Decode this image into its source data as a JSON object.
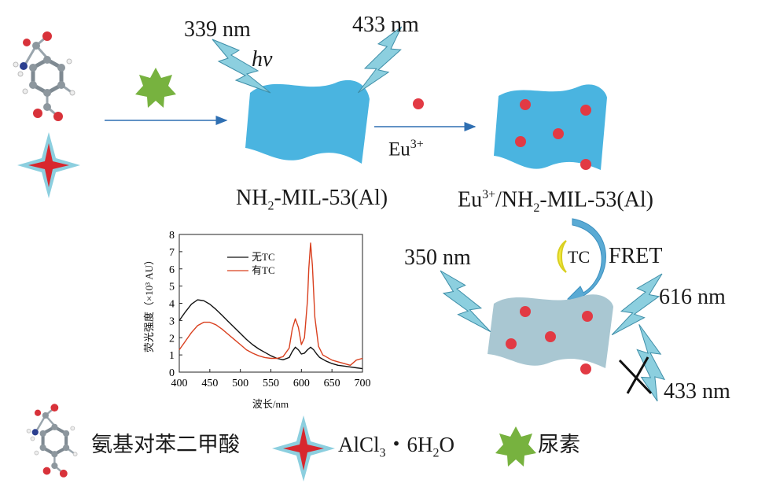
{
  "labels": {
    "excitation1": "339 nm",
    "hv": "hv",
    "emission1": "433 nm",
    "eu_arrow": "Eu",
    "eu_charge": "3+",
    "mof1_name_a": "NH",
    "mof1_name_sub": "2",
    "mof1_name_b": "-MIL-53(Al)",
    "mof2_name_a": "Eu",
    "mof2_name_sup": "3+",
    "mof2_name_b": "/NH",
    "mof2_name_sub": "2",
    "mof2_name_c": "-MIL-53(Al)",
    "excitation2": "350 nm",
    "tc": "TC",
    "fret": "FRET",
    "emission2": "616 nm",
    "quenched": "433 nm"
  },
  "legend": {
    "ligand": "氨基对苯二甲酸",
    "salt_a": "AlCl",
    "salt_sub1": "3",
    "salt_b": "・6H",
    "salt_sub2": "2",
    "salt_c": "O",
    "urea": "尿素"
  },
  "colors": {
    "sheet": "#4ab4e0",
    "sheet_quenched": "#a9c7d2",
    "dot": "#e23a44",
    "bolt": "#8ccfdf",
    "star": "#77b23f",
    "arrow": "#2f6fb2"
  },
  "chart_data": {
    "type": "line",
    "xlabel": "波长/nm",
    "ylabel": "荧光强度（×10³ AU）",
    "xlim": [
      400,
      700
    ],
    "ylim": [
      0,
      8
    ],
    "xticks": [
      400,
      450,
      500,
      550,
      600,
      650,
      700
    ],
    "yticks": [
      0,
      1,
      2,
      3,
      4,
      5,
      6,
      7,
      8
    ],
    "legend_position": "top-left",
    "series": [
      {
        "name": "无TC",
        "color": "#111111",
        "x": [
          400,
          410,
          420,
          430,
          440,
          450,
          460,
          470,
          480,
          490,
          500,
          510,
          520,
          530,
          540,
          550,
          560,
          570,
          580,
          585,
          590,
          595,
          600,
          605,
          610,
          615,
          620,
          625,
          630,
          640,
          650,
          660,
          670,
          680,
          690,
          700
        ],
        "y": [
          3.0,
          3.5,
          3.95,
          4.2,
          4.15,
          3.95,
          3.65,
          3.3,
          2.95,
          2.6,
          2.25,
          1.9,
          1.6,
          1.35,
          1.15,
          0.95,
          0.8,
          0.72,
          0.85,
          1.2,
          1.45,
          1.3,
          1.05,
          1.1,
          1.3,
          1.45,
          1.3,
          1.05,
          0.85,
          0.65,
          0.5,
          0.4,
          0.35,
          0.3,
          0.25,
          0.2
        ]
      },
      {
        "name": "有TC",
        "color": "#d9401f",
        "x": [
          400,
          410,
          420,
          430,
          440,
          450,
          460,
          470,
          480,
          490,
          500,
          510,
          520,
          530,
          540,
          550,
          560,
          570,
          580,
          585,
          590,
          595,
          600,
          605,
          610,
          612,
          615,
          618,
          622,
          628,
          635,
          640,
          650,
          660,
          670,
          680,
          690,
          700
        ],
        "y": [
          1.3,
          1.8,
          2.3,
          2.7,
          2.9,
          2.9,
          2.75,
          2.5,
          2.2,
          1.9,
          1.6,
          1.3,
          1.1,
          0.95,
          0.85,
          0.8,
          0.8,
          0.9,
          1.4,
          2.5,
          3.1,
          2.6,
          1.6,
          2.0,
          4.2,
          6.0,
          7.5,
          6.2,
          3.2,
          1.5,
          1.0,
          0.9,
          0.7,
          0.6,
          0.5,
          0.4,
          0.7,
          0.8
        ]
      }
    ]
  }
}
